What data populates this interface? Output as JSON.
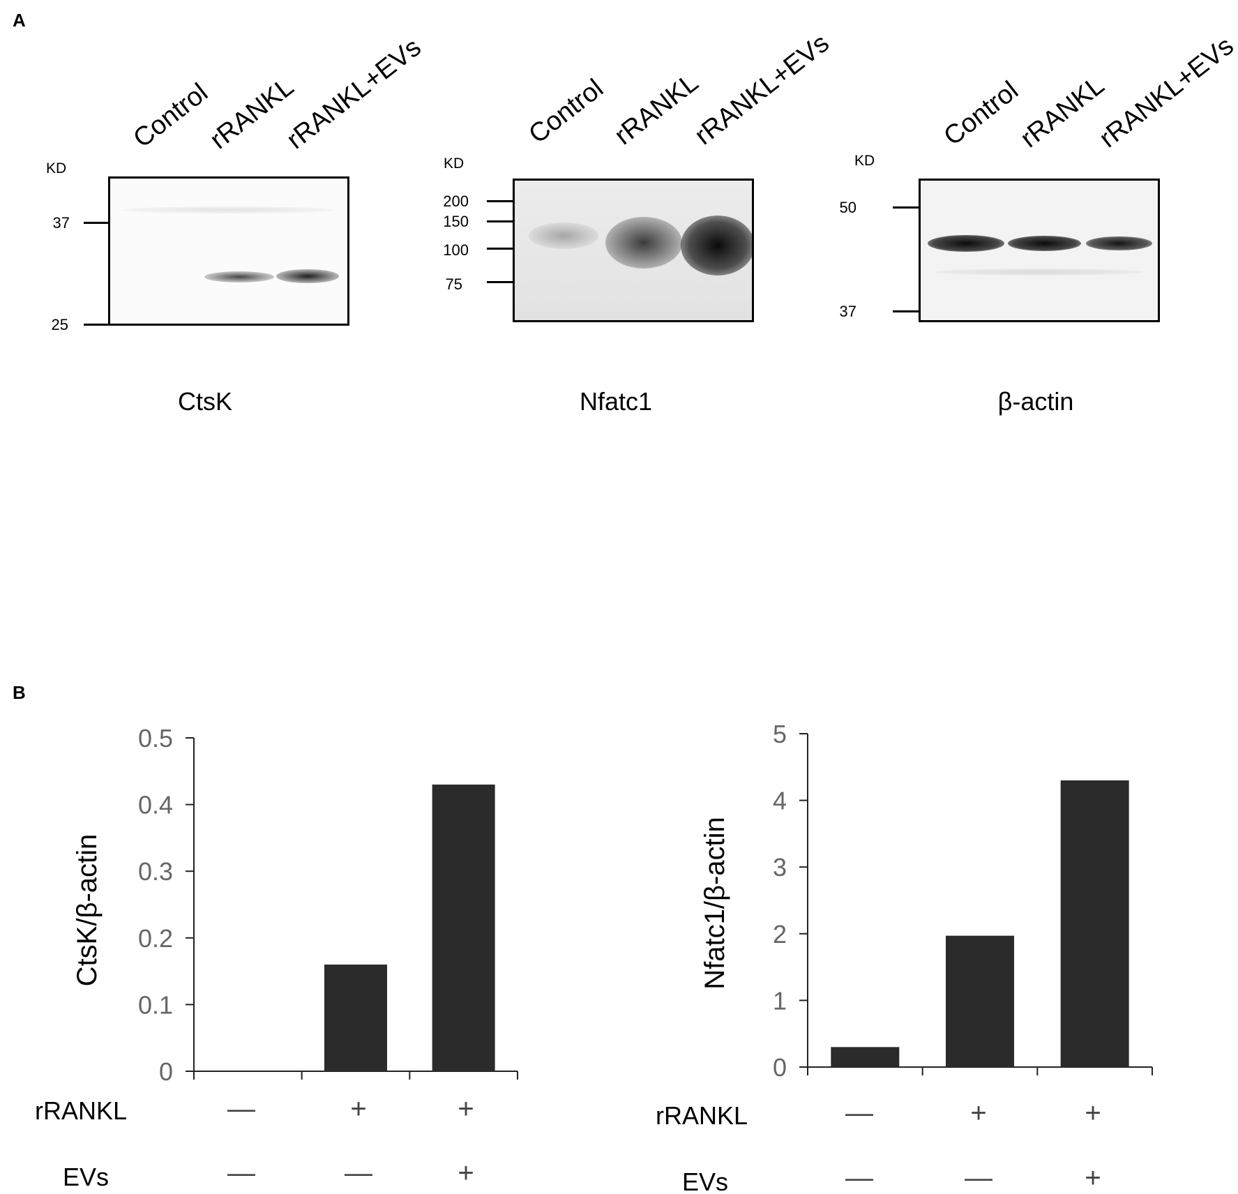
{
  "figure": {
    "panel_a_letter": "A",
    "panel_b_letter": "B",
    "kd_label": "KD",
    "lanes": [
      "Control",
      "rRANKL",
      "rRANKL+EVs"
    ],
    "blots": [
      {
        "protein": "CtsK",
        "markers": [
          "37",
          "25"
        ]
      },
      {
        "protein": "Nfatc1",
        "markers": [
          "200",
          "150",
          "100",
          "75"
        ]
      },
      {
        "protein": "β-actin",
        "markers": [
          "50",
          "37"
        ]
      }
    ],
    "conditions": {
      "row1_label": "rRANKL",
      "row2_label": "EVs",
      "row1": [
        "—",
        "+",
        "+"
      ],
      "row2": [
        "—",
        "—",
        "+"
      ]
    }
  },
  "chart_data": [
    {
      "type": "bar",
      "categories": [
        "Control",
        "rRANKL",
        "rRANKL+EVs"
      ],
      "values": [
        0,
        0.16,
        0.43
      ],
      "ylabel": "CtsK/β-actin",
      "ylim": [
        0,
        0.5
      ],
      "yticks": [
        "0",
        "0.1",
        "0.2",
        "0.3",
        "0.4",
        "0.5"
      ],
      "bar_color": "#2b2b2b"
    },
    {
      "type": "bar",
      "categories": [
        "Control",
        "rRANKL",
        "rRANKL+EVs"
      ],
      "values": [
        0.3,
        1.97,
        4.3
      ],
      "ylabel": "Nfatc1/β-actin",
      "ylim": [
        0,
        5
      ],
      "yticks": [
        "0",
        "1",
        "2",
        "3",
        "4",
        "5"
      ],
      "bar_color": "#2b2b2b"
    }
  ]
}
